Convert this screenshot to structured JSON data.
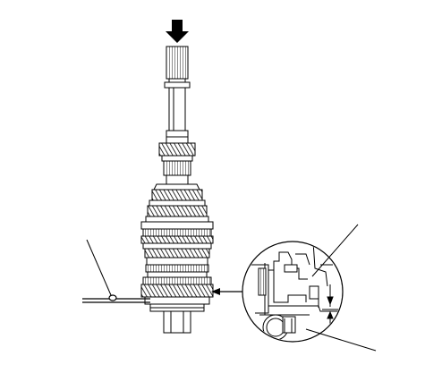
{
  "figure": {
    "description_labels": [],
    "callouts": {
      "press_direction_arrow": "arrow",
      "feeler_gauge_leader": "leader",
      "detail_upper_leader": "leader",
      "detail_lower_leader": "leader"
    },
    "colors": {
      "ink": "#000000",
      "paper": "#ffffff",
      "hatch": "#000000"
    }
  }
}
